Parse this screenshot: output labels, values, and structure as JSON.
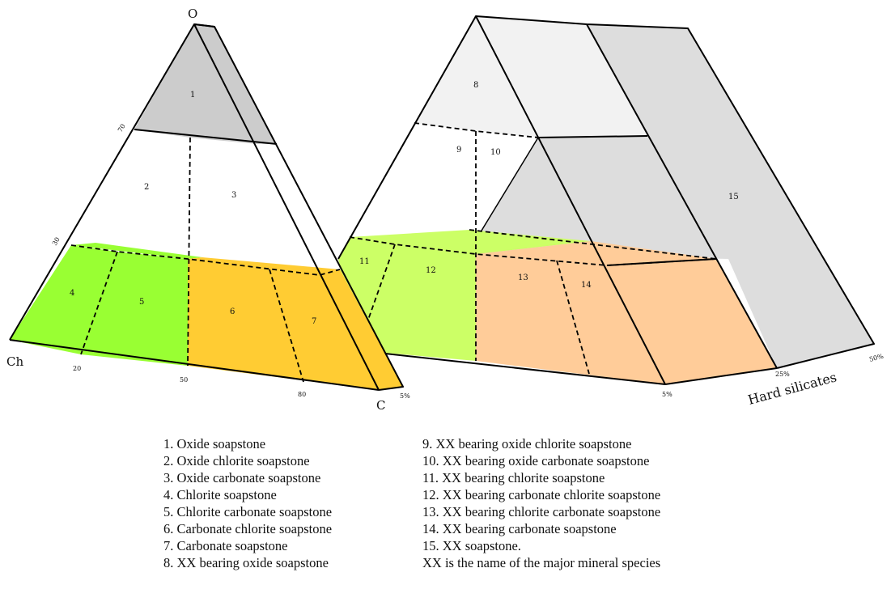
{
  "colors": {
    "oxide": "#cccccc",
    "chlorite": "#99ff33",
    "carbonate": "#ffcc33",
    "xx_oxide": "#f2f2f2",
    "xx_chlorite": "#ccff66",
    "xx_carbonate": "#ffcc99",
    "hard_silicates": "#dddddd"
  },
  "vertices": {
    "top": "O",
    "left": "Ch",
    "right": "C"
  },
  "axis": {
    "oc_ticks": [
      "70",
      "30"
    ],
    "chc_ticks": [
      "20",
      "50",
      "80"
    ],
    "depth_ticks": [
      "5%",
      "5%",
      "25%",
      "50%"
    ],
    "depth_label": "Hard silicates"
  },
  "regions": [
    "1",
    "2",
    "3",
    "4",
    "5",
    "6",
    "7",
    "8",
    "9",
    "10",
    "11",
    "12",
    "13",
    "14",
    "15"
  ],
  "legend": {
    "left": [
      "1. Oxide soapstone",
      "2. Oxide chlorite soapstone",
      "3. Oxide carbonate soapstone",
      "4. Chlorite soapstone",
      "5. Chlorite carbonate soapstone",
      "6. Carbonate chlorite soapstone",
      "7. Carbonate soapstone",
      "8. XX bearing oxide soapstone"
    ],
    "right": [
      "9. XX bearing oxide chlorite soapstone",
      "10. XX bearing oxide carbonate soapstone",
      "11. XX bearing chlorite soapstone",
      "12. XX bearing carbonate chlorite soapstone",
      "13. XX bearing chlorite carbonate soapstone",
      "14. XX bearing carbonate soapstone",
      "15. XX soapstone.",
      "XX is the name of the major mineral species"
    ]
  }
}
